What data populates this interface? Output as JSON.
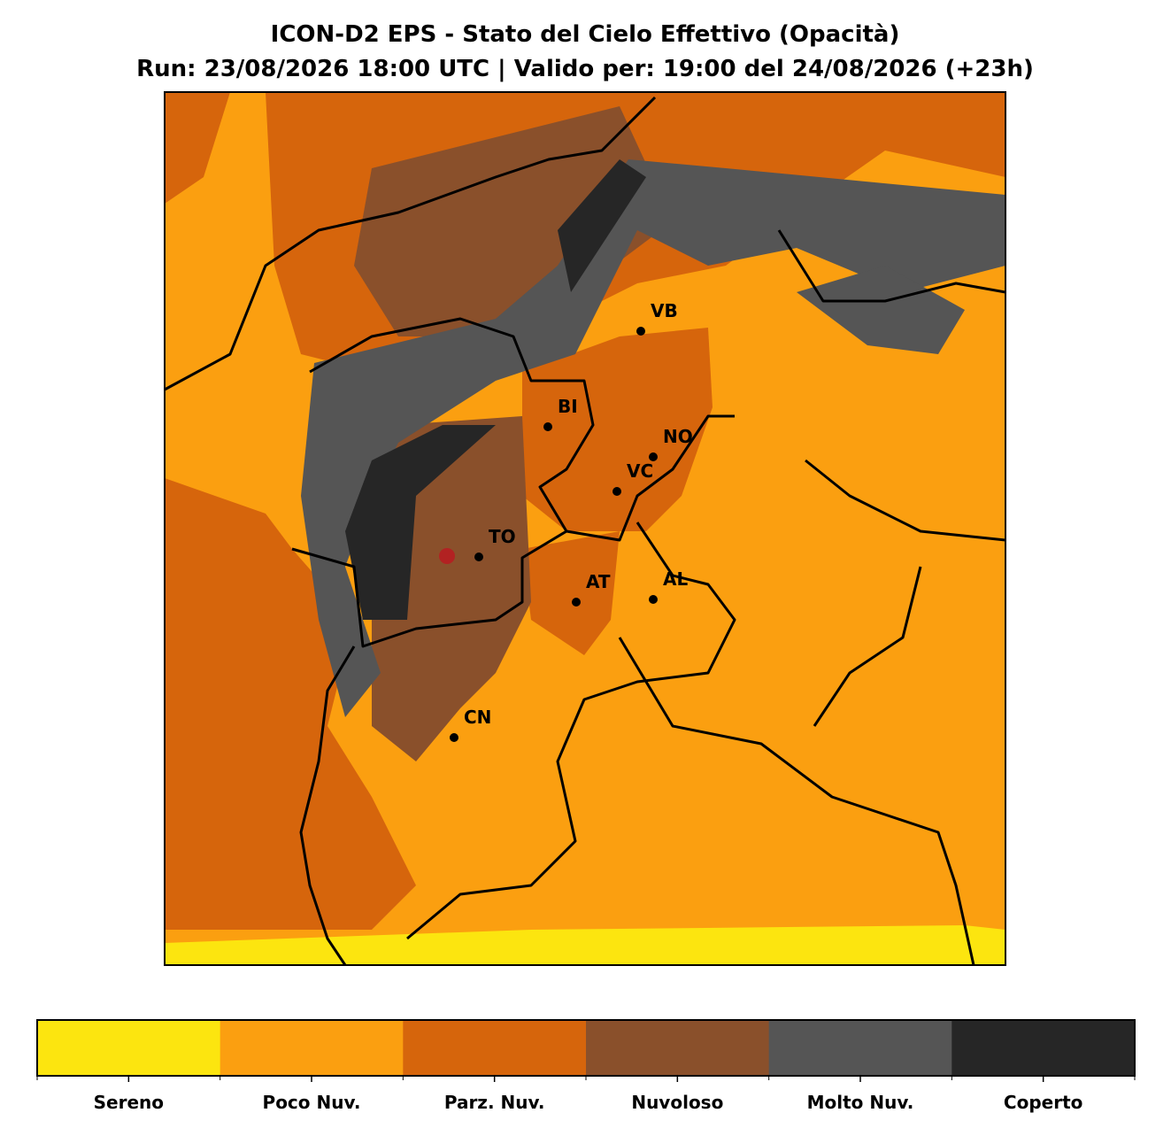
{
  "title": "ICON-D2 EPS - Stato del Cielo Effettivo (Opacità)",
  "subtitle": "Run: 23/08/2026 18:00 UTC | Valido per: 19:00 del 24/08/2026 (+23h)",
  "cities": [
    {
      "label": "VB"
    },
    {
      "label": "BI"
    },
    {
      "label": "NO"
    },
    {
      "label": "VC"
    },
    {
      "label": "TO"
    },
    {
      "label": "AT"
    },
    {
      "label": "AL"
    },
    {
      "label": "CN"
    }
  ],
  "colorbar": {
    "items": [
      {
        "label": "Sereno",
        "color": "#fce50f"
      },
      {
        "label": "Poco Nuv.",
        "color": "#fb9f10"
      },
      {
        "label": "Parz. Nuv.",
        "color": "#d6650c"
      },
      {
        "label": "Nuvoloso",
        "color": "#8a502b"
      },
      {
        "label": "Molto Nuv.",
        "color": "#555555"
      },
      {
        "label": "Coperto",
        "color": "#262626"
      }
    ]
  }
}
